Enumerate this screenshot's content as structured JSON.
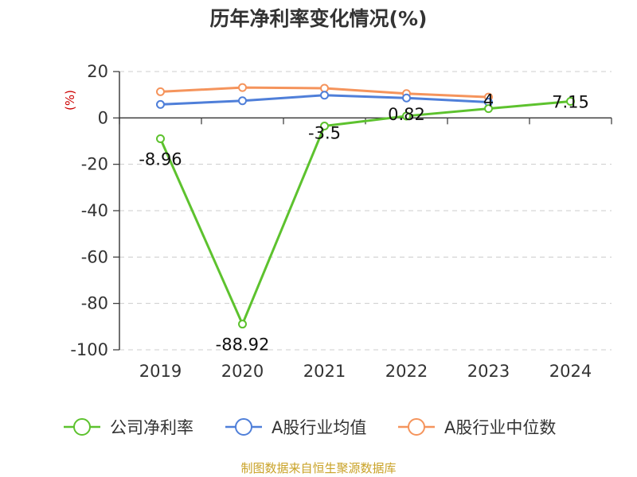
{
  "chart_data": {
    "type": "line",
    "title": "历年净利率变化情况(%)",
    "ylabel": "(%)",
    "categories": [
      "2019",
      "2020",
      "2021",
      "2022",
      "2023",
      "2024"
    ],
    "ylim": [
      -100,
      20
    ],
    "yticks": [
      20,
      0,
      -20,
      -40,
      -60,
      -80,
      -100
    ],
    "grid": true,
    "legend_position": "bottom",
    "series": [
      {
        "name": "公司净利率",
        "color": "#5dc22e",
        "values": [
          -8.96,
          -88.92,
          -3.5,
          0.82,
          4,
          7.15
        ],
        "labels": [
          "-8.96",
          "-88.92",
          "-3.5",
          "0.82",
          "4",
          "7.15"
        ]
      },
      {
        "name": "A股行业均值",
        "color": "#4f7fd9",
        "values": [
          5.8,
          7.4,
          9.8,
          8.6,
          6.8,
          null
        ]
      },
      {
        "name": "A股行业中位数",
        "color": "#f5945c",
        "values": [
          11.3,
          13.1,
          12.8,
          10.5,
          9.0,
          null
        ]
      }
    ]
  },
  "footer": {
    "source": "制图数据来自恒生聚源数据库"
  }
}
